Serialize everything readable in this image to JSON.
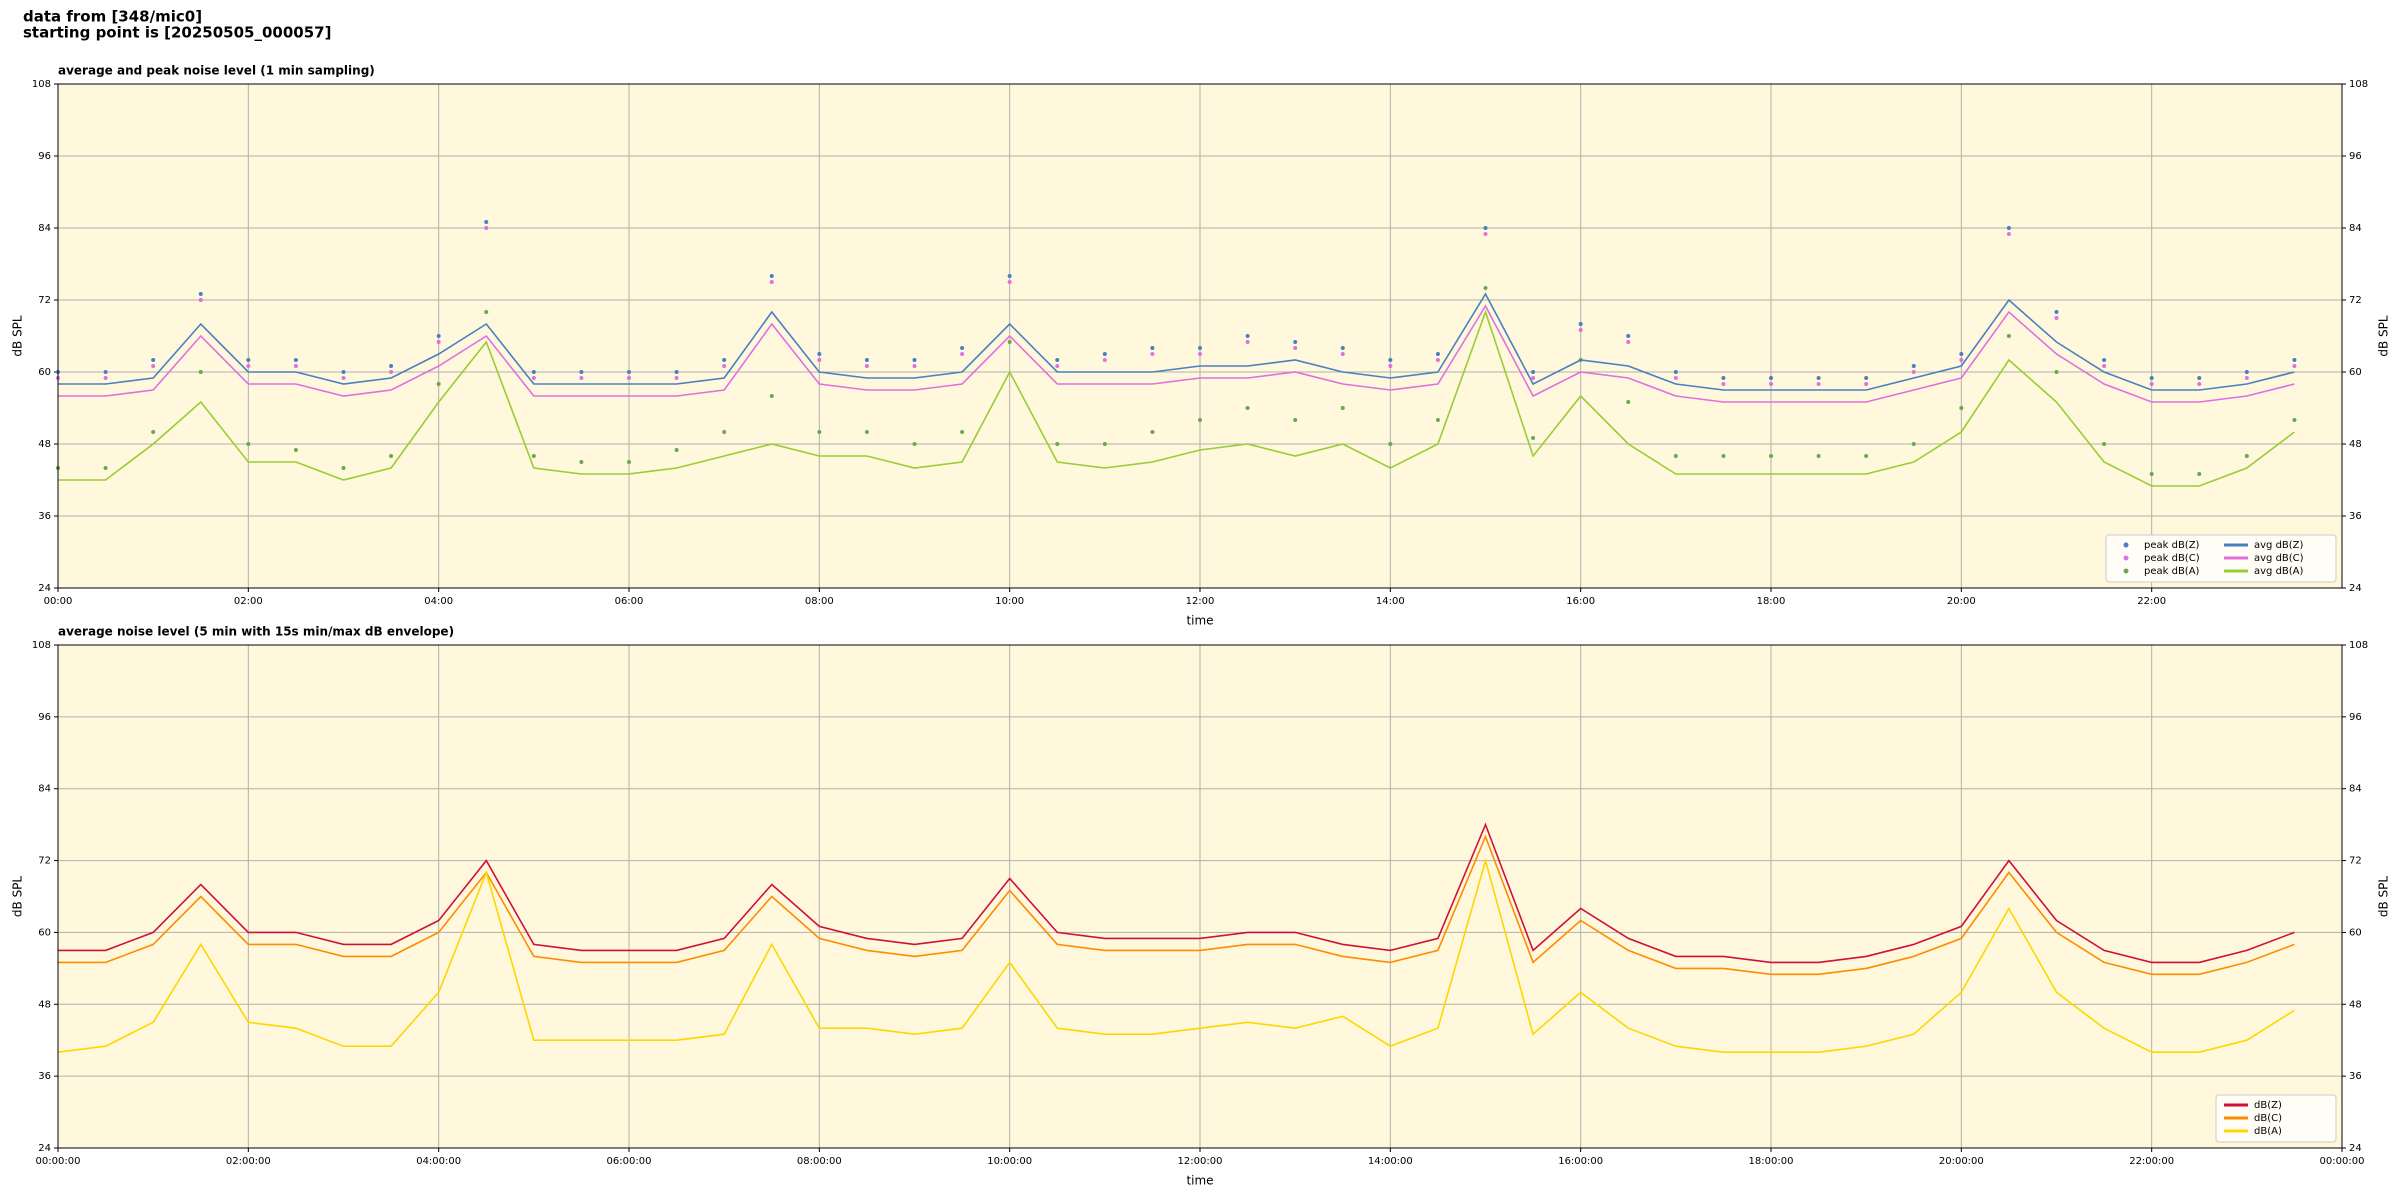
{
  "header": {
    "lines": [
      "data from [348/mic0]",
      "starting point is [20250505_000057]"
    ]
  },
  "chart_data": [
    {
      "type": "line",
      "title": "average and peak noise level (1 min sampling)",
      "xlabel": "time",
      "ylabel": "dB SPL",
      "x": [
        0,
        0.5,
        1,
        1.5,
        2,
        2.5,
        3,
        3.5,
        4,
        4.5,
        5,
        5.5,
        6,
        6.5,
        7,
        7.5,
        8,
        8.5,
        9,
        9.5,
        10,
        10.5,
        11,
        11.5,
        12,
        12.5,
        13,
        13.5,
        14,
        14.5,
        15,
        15.5,
        16,
        16.5,
        17,
        17.5,
        18,
        18.5,
        19,
        19.5,
        20,
        20.5,
        21,
        21.5,
        22,
        22.5,
        23,
        23.5
      ],
      "xlim": [
        0,
        24
      ],
      "xticks": [
        {
          "value": 0,
          "label": "00:00"
        },
        {
          "value": 2,
          "label": "02:00"
        },
        {
          "value": 4,
          "label": "04:00"
        },
        {
          "value": 6,
          "label": "06:00"
        },
        {
          "value": 8,
          "label": "08:00"
        },
        {
          "value": 10,
          "label": "10:00"
        },
        {
          "value": 12,
          "label": "12:00"
        },
        {
          "value": 14,
          "label": "14:00"
        },
        {
          "value": 16,
          "label": "16:00"
        },
        {
          "value": 18,
          "label": "18:00"
        },
        {
          "value": 20,
          "label": "20:00"
        },
        {
          "value": 22,
          "label": "22:00"
        }
      ],
      "ylim": [
        24,
        108
      ],
      "yticks": [
        24,
        36,
        48,
        60,
        72,
        84,
        96,
        108
      ],
      "grid": true,
      "legend": "lower right",
      "legend_columns": 2,
      "series": [
        {
          "name": "peak dB(Z)",
          "color": "#4a7fc1",
          "marker": true,
          "values": [
            60,
            60,
            62,
            73,
            62,
            62,
            60,
            61,
            66,
            85,
            60,
            60,
            60,
            60,
            62,
            76,
            63,
            62,
            62,
            64,
            76,
            62,
            63,
            64,
            64,
            66,
            65,
            64,
            62,
            63,
            84,
            60,
            68,
            66,
            60,
            59,
            59,
            59,
            59,
            61,
            63,
            84,
            70,
            62,
            59,
            59,
            60,
            62
          ]
        },
        {
          "name": "peak dB(C)",
          "color": "#e070e0",
          "marker": true,
          "values": [
            59,
            59,
            61,
            72,
            61,
            61,
            59,
            60,
            65,
            84,
            59,
            59,
            59,
            59,
            61,
            75,
            62,
            61,
            61,
            63,
            75,
            61,
            62,
            63,
            63,
            65,
            64,
            63,
            61,
            62,
            83,
            59,
            67,
            65,
            59,
            58,
            58,
            58,
            58,
            60,
            62,
            83,
            69,
            61,
            58,
            58,
            59,
            61
          ]
        },
        {
          "name": "peak dB(A)",
          "color": "#6aa84f",
          "marker": true,
          "values": [
            44,
            44,
            50,
            60,
            48,
            47,
            44,
            46,
            58,
            70,
            46,
            45,
            45,
            47,
            50,
            56,
            50,
            50,
            48,
            50,
            65,
            48,
            48,
            50,
            52,
            54,
            52,
            54,
            48,
            52,
            74,
            49,
            62,
            55,
            46,
            46,
            46,
            46,
            46,
            48,
            54,
            66,
            60,
            48,
            43,
            43,
            46,
            52
          ]
        },
        {
          "name": "avg dB(Z)",
          "color": "#4a7fc1",
          "values": [
            58,
            58,
            59,
            68,
            60,
            60,
            58,
            59,
            63,
            68,
            58,
            58,
            58,
            58,
            59,
            70,
            60,
            59,
            59,
            60,
            68,
            60,
            60,
            60,
            61,
            61,
            62,
            60,
            59,
            60,
            73,
            58,
            62,
            61,
            58,
            57,
            57,
            57,
            57,
            59,
            61,
            72,
            65,
            60,
            57,
            57,
            58,
            60
          ]
        },
        {
          "name": "avg dB(C)",
          "color": "#e070e0",
          "values": [
            56,
            56,
            57,
            66,
            58,
            58,
            56,
            57,
            61,
            66,
            56,
            56,
            56,
            56,
            57,
            68,
            58,
            57,
            57,
            58,
            66,
            58,
            58,
            58,
            59,
            59,
            60,
            58,
            57,
            58,
            71,
            56,
            60,
            59,
            56,
            55,
            55,
            55,
            55,
            57,
            59,
            70,
            63,
            58,
            55,
            55,
            56,
            58
          ]
        },
        {
          "name": "avg dB(A)",
          "color": "#9acd32",
          "values": [
            42,
            42,
            48,
            55,
            45,
            45,
            42,
            44,
            55,
            65,
            44,
            43,
            43,
            44,
            46,
            48,
            46,
            46,
            44,
            45,
            60,
            45,
            44,
            45,
            47,
            48,
            46,
            48,
            44,
            48,
            70,
            46,
            56,
            48,
            43,
            43,
            43,
            43,
            43,
            45,
            50,
            62,
            55,
            45,
            41,
            41,
            44,
            50
          ]
        }
      ]
    },
    {
      "type": "line",
      "title": "average noise level (5 min with 15s min/max dB envelope)",
      "xlabel": "time",
      "ylabel": "dB SPL",
      "x": [
        0,
        0.5,
        1,
        1.5,
        2,
        2.5,
        3,
        3.5,
        4,
        4.5,
        5,
        5.5,
        6,
        6.5,
        7,
        7.5,
        8,
        8.5,
        9,
        9.5,
        10,
        10.5,
        11,
        11.5,
        12,
        12.5,
        13,
        13.5,
        14,
        14.5,
        15,
        15.5,
        16,
        16.5,
        17,
        17.5,
        18,
        18.5,
        19,
        19.5,
        20,
        20.5,
        21,
        21.5,
        22,
        22.5,
        23,
        23.5
      ],
      "xlim": [
        0,
        24
      ],
      "xticks": [
        {
          "value": 0,
          "label": "00:00:00"
        },
        {
          "value": 2,
          "label": "02:00:00"
        },
        {
          "value": 4,
          "label": "04:00:00"
        },
        {
          "value": 6,
          "label": "06:00:00"
        },
        {
          "value": 8,
          "label": "08:00:00"
        },
        {
          "value": 10,
          "label": "10:00:00"
        },
        {
          "value": 12,
          "label": "12:00:00"
        },
        {
          "value": 14,
          "label": "14:00:00"
        },
        {
          "value": 16,
          "label": "16:00:00"
        },
        {
          "value": 18,
          "label": "18:00:00"
        },
        {
          "value": 20,
          "label": "20:00:00"
        },
        {
          "value": 22,
          "label": "22:00:00"
        },
        {
          "value": 24,
          "label": "00:00:00"
        }
      ],
      "ylim": [
        24,
        108
      ],
      "yticks": [
        24,
        36,
        48,
        60,
        72,
        84,
        96,
        108
      ],
      "grid": true,
      "legend": "lower right",
      "legend_columns": 1,
      "series": [
        {
          "name": "dB(Z)",
          "color": "#d0103a",
          "values": [
            57,
            57,
            60,
            68,
            60,
            60,
            58,
            58,
            62,
            72,
            58,
            57,
            57,
            57,
            59,
            68,
            61,
            59,
            58,
            59,
            69,
            60,
            59,
            59,
            59,
            60,
            60,
            58,
            57,
            59,
            78,
            57,
            64,
            59,
            56,
            56,
            55,
            55,
            56,
            58,
            61,
            72,
            62,
            57,
            55,
            55,
            57,
            60
          ]
        },
        {
          "name": "dB(C)",
          "color": "#ff8c00",
          "values": [
            55,
            55,
            58,
            66,
            58,
            58,
            56,
            56,
            60,
            70,
            56,
            55,
            55,
            55,
            57,
            66,
            59,
            57,
            56,
            57,
            67,
            58,
            57,
            57,
            57,
            58,
            58,
            56,
            55,
            57,
            76,
            55,
            62,
            57,
            54,
            54,
            53,
            53,
            54,
            56,
            59,
            70,
            60,
            55,
            53,
            53,
            55,
            58
          ]
        },
        {
          "name": "dB(A)",
          "color": "#ffd700",
          "values": [
            40,
            41,
            45,
            58,
            45,
            44,
            41,
            41,
            50,
            70,
            42,
            42,
            42,
            42,
            43,
            58,
            44,
            44,
            43,
            44,
            55,
            44,
            43,
            43,
            44,
            45,
            44,
            46,
            41,
            44,
            72,
            43,
            50,
            44,
            41,
            40,
            40,
            40,
            41,
            43,
            50,
            64,
            50,
            44,
            40,
            40,
            42,
            47
          ]
        }
      ]
    }
  ]
}
